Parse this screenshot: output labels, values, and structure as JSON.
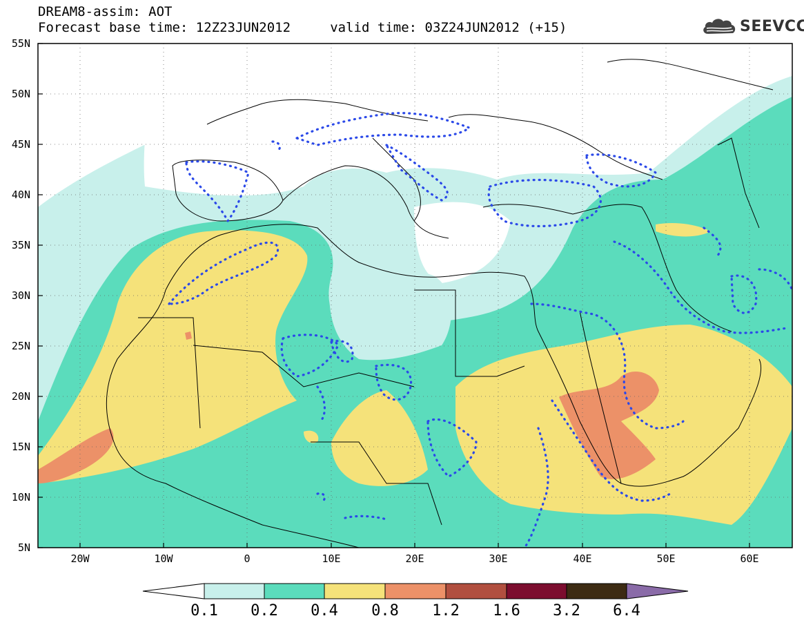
{
  "header": {
    "title_line1": "DREAM8-assim: AOT",
    "title_line2": "Forecast base time: 12Z23JUN2012     valid time: 03Z24JUN2012 (+15)",
    "logo_text": "SEEVCCC"
  },
  "map": {
    "type": "geographic-contour",
    "variable": "AOT",
    "lat_range": [
      5,
      55
    ],
    "lon_range": [
      -25,
      65
    ],
    "lat_labels": [
      "55N",
      "50N",
      "45N",
      "40N",
      "35N",
      "30N",
      "25N",
      "20N",
      "15N",
      "10N",
      "5N"
    ],
    "lon_labels": [
      "20W",
      "10W",
      "0",
      "10E",
      "20E",
      "30E",
      "40E",
      "50E",
      "60E"
    ],
    "gridlines": "dotted"
  },
  "colorbar": {
    "labels": [
      "0.1",
      "0.2",
      "0.4",
      "0.8",
      "1.2",
      "1.6",
      "3.2",
      "6.4"
    ],
    "colors": [
      "#ffffff",
      "#c8f0eb",
      "#5bdcbc",
      "#f5e27a",
      "#ec9168",
      "#b14f3f",
      "#7c0d2f",
      "#3d2b13",
      "#8a6ba8"
    ]
  }
}
